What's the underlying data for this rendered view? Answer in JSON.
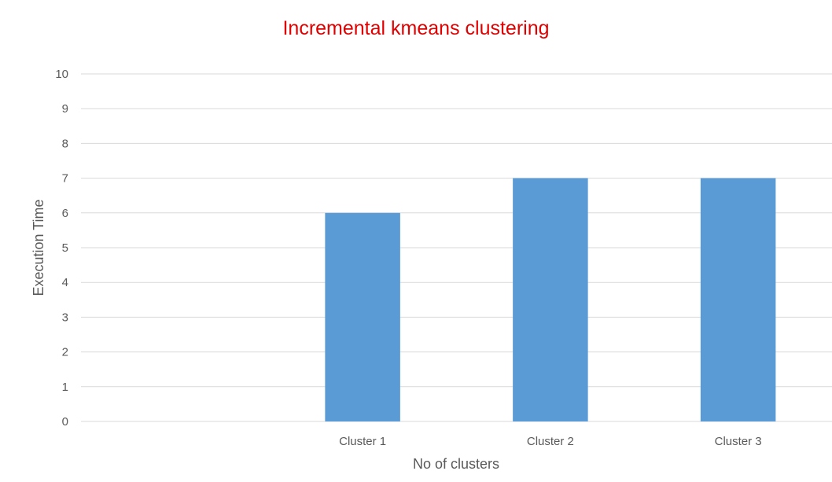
{
  "chart_data": {
    "type": "bar",
    "title": "Incremental kmeans clustering",
    "xlabel": "No of clusters",
    "ylabel": "Execution Time",
    "categories": [
      "",
      "Cluster  1",
      "Cluster 2",
      "Cluster 3"
    ],
    "series": [
      {
        "values": [
          null,
          6,
          7,
          7
        ]
      }
    ],
    "ylim": [
      0,
      10
    ],
    "yticks": [
      "0",
      "1",
      "2",
      "3",
      "4",
      "5",
      "6",
      "7",
      "8",
      "9",
      "10"
    ],
    "grid": true,
    "legend": "none",
    "colors": {
      "bar": "#5b9bd5",
      "title": "#e00000",
      "grid": "#d9d9d9",
      "text": "#595959"
    }
  }
}
